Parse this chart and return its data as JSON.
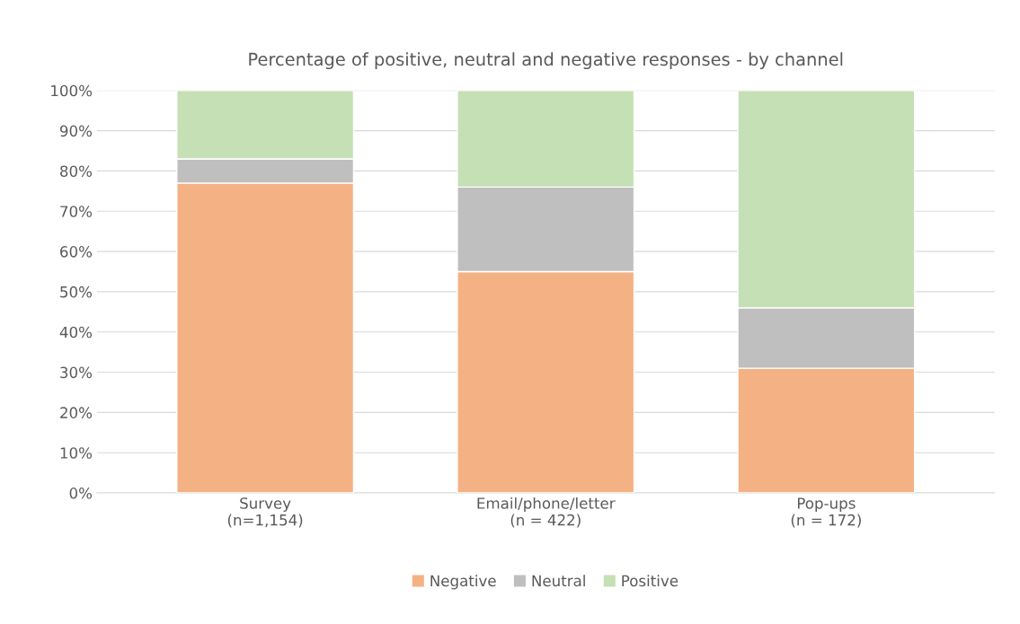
{
  "chart_data": {
    "type": "bar",
    "stacked": true,
    "title": "Percentage of positive, neutral and negative responses - by channel",
    "categories": [
      "Survey\n(n=1,154)",
      "Email/phone/letter\n(n = 422)",
      "Pop-ups\n(n = 172)"
    ],
    "series": [
      {
        "name": "Negative",
        "color": "#f4b183",
        "values": [
          77,
          55,
          31
        ]
      },
      {
        "name": "Neutral",
        "color": "#bfbfbf",
        "values": [
          6,
          21,
          15
        ]
      },
      {
        "name": "Positive",
        "color": "#c5e0b4",
        "values": [
          17,
          24,
          54
        ]
      }
    ],
    "ylim": [
      0,
      100
    ],
    "yticks": [
      {
        "value": 0,
        "label": "0%"
      },
      {
        "value": 10,
        "label": "10%"
      },
      {
        "value": 20,
        "label": "20%"
      },
      {
        "value": 30,
        "label": "30%"
      },
      {
        "value": 40,
        "label": "40%"
      },
      {
        "value": 50,
        "label": "50%"
      },
      {
        "value": 60,
        "label": "60%"
      },
      {
        "value": 70,
        "label": "70%"
      },
      {
        "value": 80,
        "label": "80%"
      },
      {
        "value": 90,
        "label": "90%"
      },
      {
        "value": 100,
        "label": "100%"
      }
    ],
    "grid": "y",
    "legend": "bottom"
  }
}
